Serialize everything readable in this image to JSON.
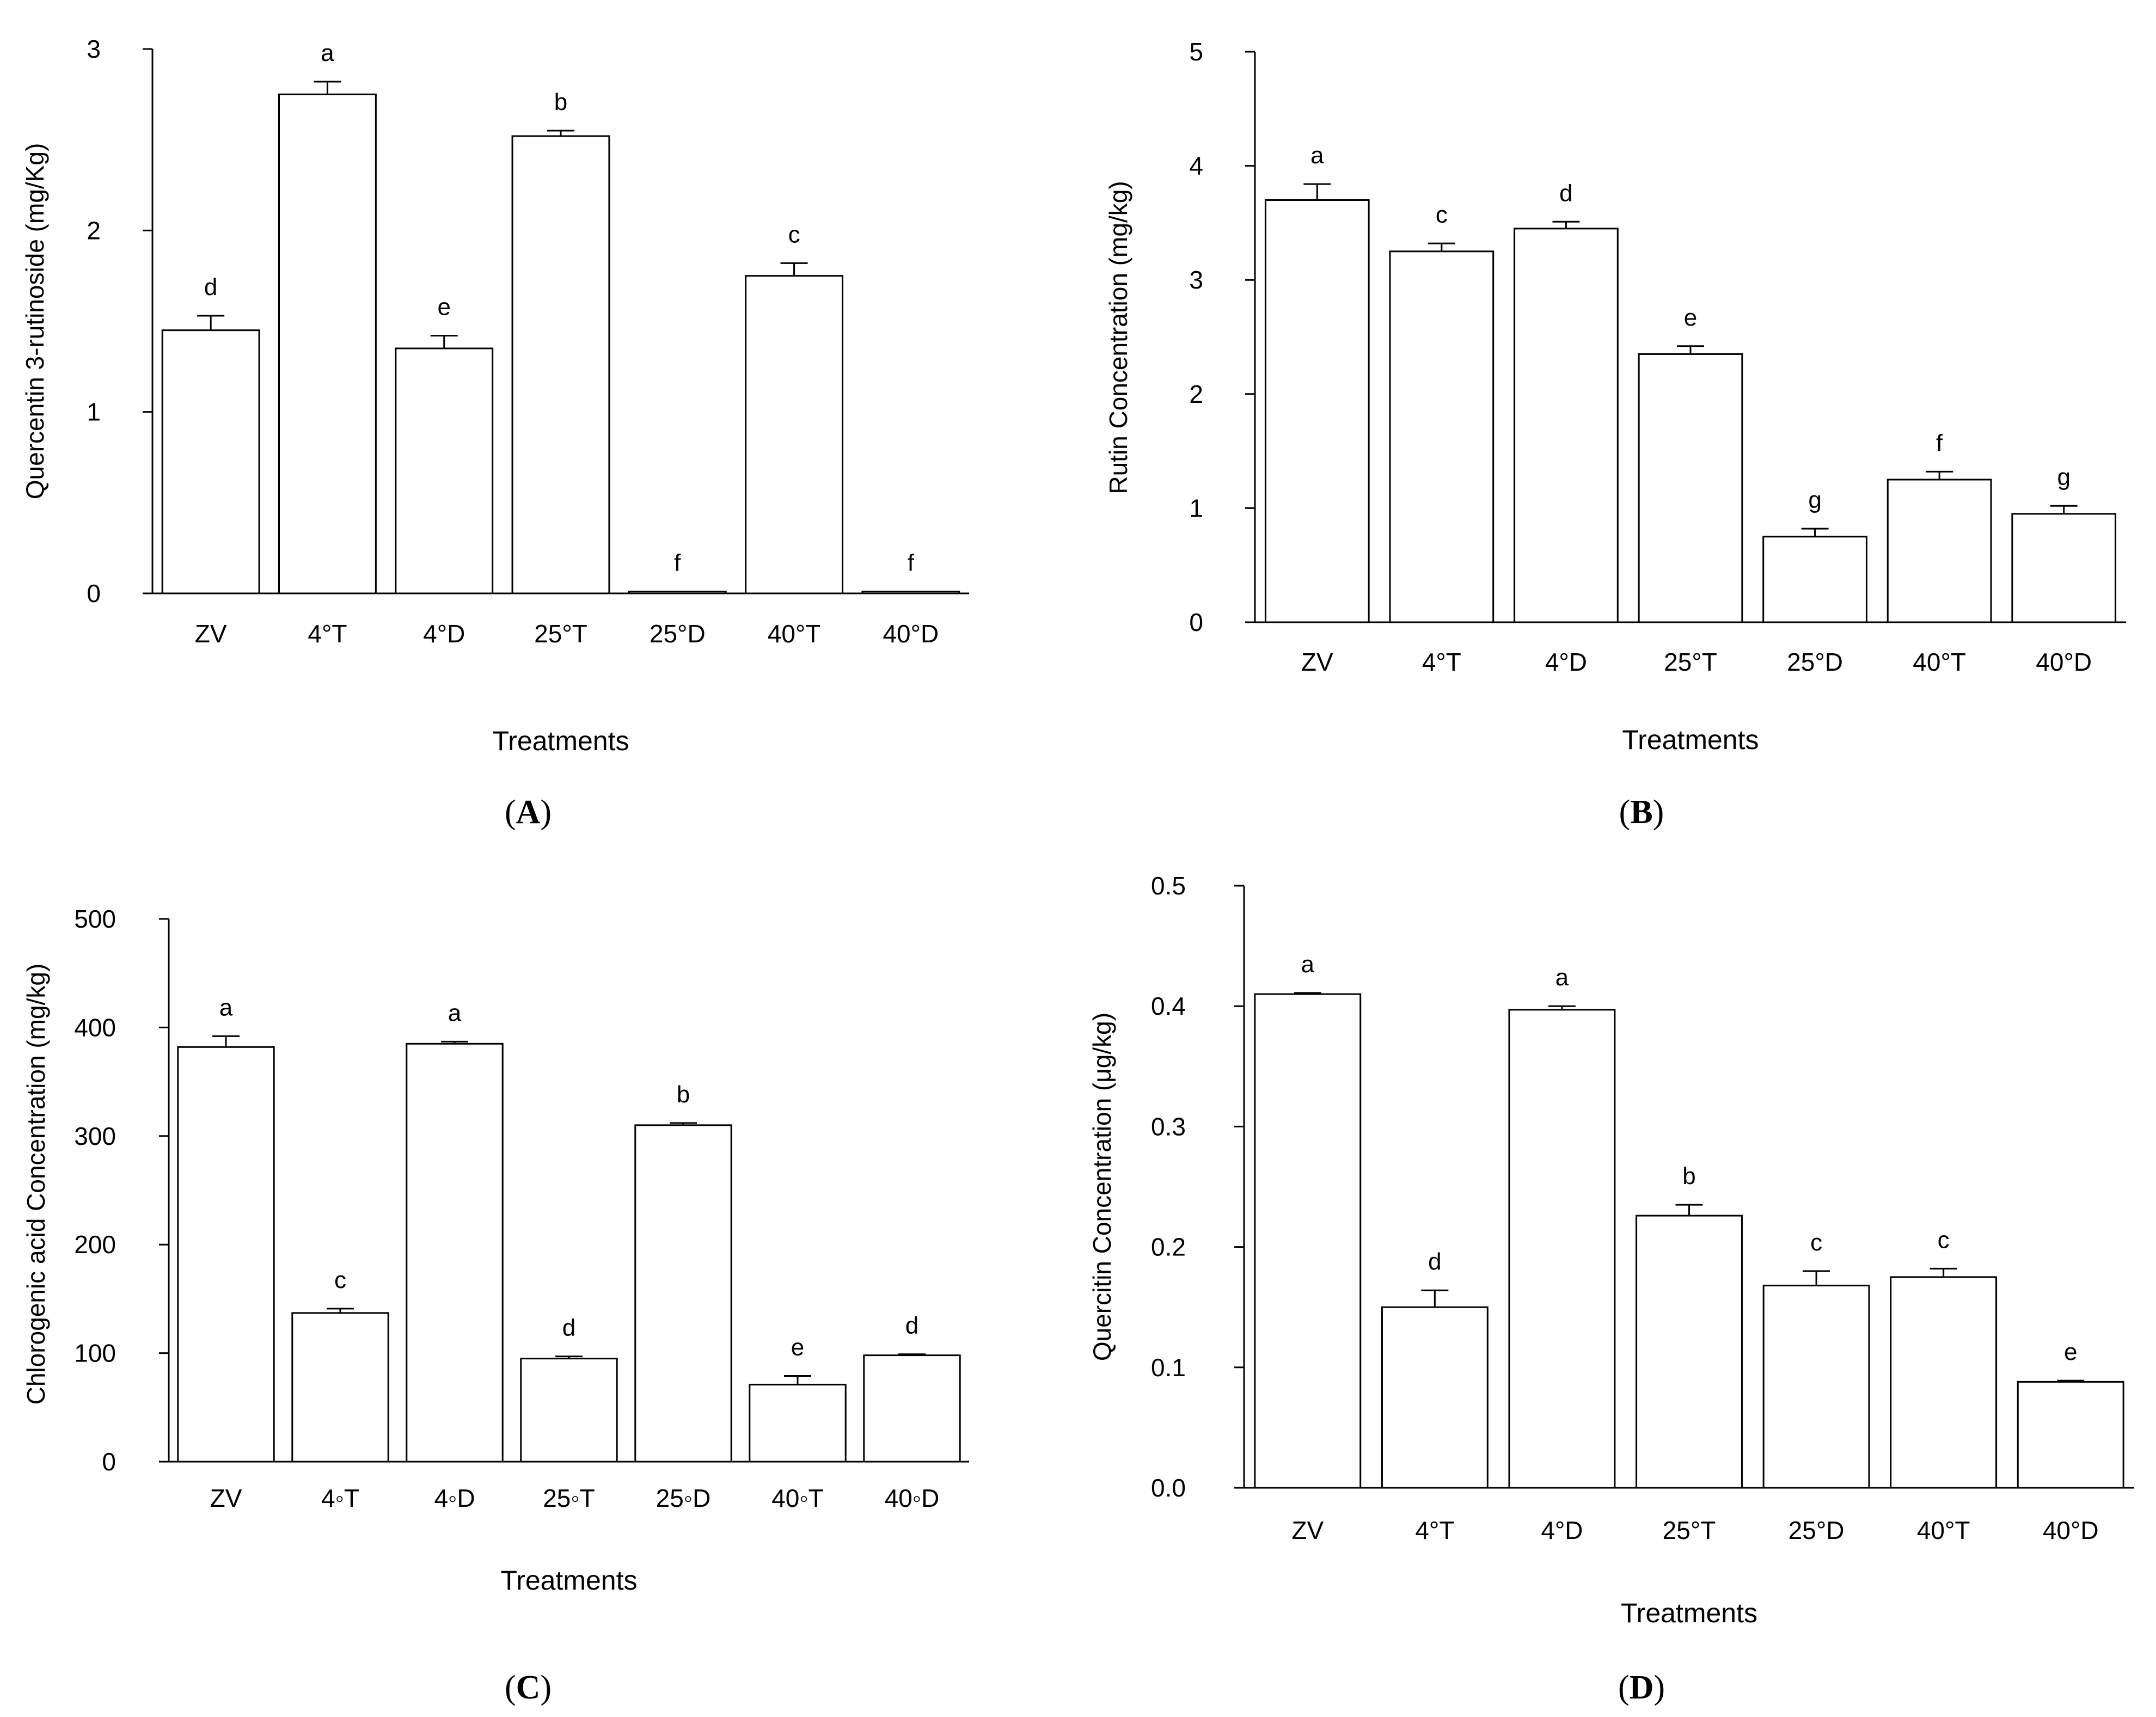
{
  "colors": {
    "bar_fill": "#ffffff",
    "stroke": "#000000",
    "background": "#ffffff"
  },
  "chart_data": [
    {
      "type": "bar",
      "panel": "(A)",
      "panel_letter": "A",
      "title": "",
      "xlabel": "Treatments",
      "ylabel": "Quercentin 3-rutinoside (mg/Kg)",
      "categories": [
        "ZV",
        "4°T",
        "4°D",
        "25°T",
        "25°D",
        "40°T",
        "40°D"
      ],
      "values": [
        1.45,
        2.75,
        1.35,
        2.52,
        0.01,
        1.75,
        0.01
      ],
      "errors": [
        0.08,
        0.07,
        0.07,
        0.03,
        0,
        0.07,
        0
      ],
      "letters": [
        "d",
        "a",
        "e",
        "b",
        "f",
        "c",
        "f"
      ],
      "ylim": [
        0,
        3
      ],
      "yticks": [
        0,
        1,
        2,
        3
      ],
      "ytick_labels": [
        "0",
        "1",
        "2",
        "3"
      ],
      "grid": false
    },
    {
      "type": "bar",
      "panel": "(B)",
      "panel_letter": "B",
      "title": "",
      "xlabel": "Treatments",
      "ylabel": "Rutin Concentration (mg/kg)",
      "categories": [
        "ZV",
        "4°T",
        "4°D",
        "25°T",
        "25°D",
        "40°T",
        "40°D"
      ],
      "values": [
        3.7,
        3.25,
        3.45,
        2.35,
        0.75,
        1.25,
        0.95
      ],
      "errors": [
        0.14,
        0.07,
        0.06,
        0.07,
        0.07,
        0.07,
        0.07
      ],
      "letters": [
        "a",
        "c",
        "d",
        "e",
        "g",
        "f",
        "g"
      ],
      "ylim": [
        0,
        5
      ],
      "yticks": [
        0,
        1,
        2,
        3,
        4,
        5
      ],
      "ytick_labels": [
        "0",
        "1",
        "2",
        "3",
        "4",
        "5"
      ],
      "grid": false
    },
    {
      "type": "bar",
      "panel": "(C)",
      "panel_letter": "C",
      "title": "",
      "xlabel": "Treatments",
      "ylabel": "Chlorogenic acid Concentration (mg/kg)",
      "categories": [
        "ZV",
        "4◦T",
        "4◦D",
        "25◦T",
        "25◦D",
        "40◦T",
        "40◦D"
      ],
      "values": [
        382,
        137,
        385,
        95,
        310,
        71,
        98
      ],
      "errors": [
        10,
        4,
        2,
        2,
        2,
        8,
        1
      ],
      "letters": [
        "a",
        "c",
        "a",
        "d",
        "b",
        "e",
        "d"
      ],
      "ylim": [
        0,
        500
      ],
      "yticks": [
        0,
        100,
        200,
        300,
        400,
        500
      ],
      "ytick_labels": [
        "0",
        "100",
        "200",
        "300",
        "400",
        "500"
      ],
      "grid": false
    },
    {
      "type": "bar",
      "panel": "(D)",
      "panel_letter": "D",
      "title": "",
      "xlabel": "Treatments",
      "ylabel": "Quercitin Concentration (μg/kg)",
      "categories": [
        "ZV",
        "4°T",
        "4°D",
        "25°T",
        "25°D",
        "40°T",
        "40°D"
      ],
      "values": [
        0.41,
        0.15,
        0.397,
        0.226,
        0.168,
        0.175,
        0.088
      ],
      "errors": [
        0.001,
        0.014,
        0.003,
        0.009,
        0.012,
        0.007,
        0.001
      ],
      "letters": [
        "a",
        "d",
        "a",
        "b",
        "c",
        "c",
        "e"
      ],
      "ylim": [
        0,
        0.5
      ],
      "yticks": [
        0,
        0.1,
        0.2,
        0.3,
        0.4,
        0.5
      ],
      "ytick_labels": [
        "0.0",
        "0.1",
        "0.2",
        "0.3",
        "0.4",
        "0.5"
      ],
      "grid": false
    }
  ]
}
